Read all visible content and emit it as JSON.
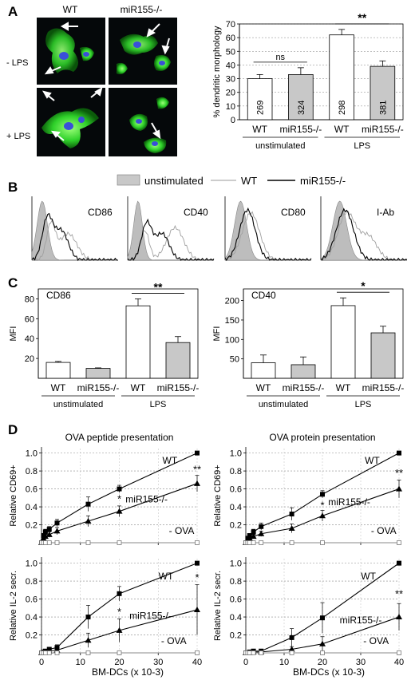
{
  "panels": {
    "A": {
      "letter": "A",
      "micro": {
        "col_labels": [
          "WT",
          "miR155-/-"
        ],
        "row_labels": [
          "- LPS",
          "+ LPS"
        ]
      },
      "chart_data": {
        "type": "bar",
        "ylabel": "% dendritic morphology",
        "ylim": [
          0,
          70
        ],
        "yticks": [
          0,
          10,
          20,
          30,
          40,
          50,
          60,
          70
        ],
        "grid": true,
        "categories": [
          "WT",
          "miR155-/-",
          "WT",
          "miR155-/-"
        ],
        "groups": [
          "unstimulated",
          "LPS"
        ],
        "values": [
          30,
          33,
          62,
          39
        ],
        "errors": [
          3,
          5,
          4,
          4
        ],
        "bar_labels": [
          "269",
          "324",
          "298",
          "381"
        ],
        "colors": [
          "#ffffff",
          "#c8c8c8",
          "#ffffff",
          "#c8c8c8"
        ],
        "significance": [
          {
            "label": "ns",
            "from": 0,
            "to": 1
          },
          {
            "label": "**",
            "from": 2,
            "to": 3
          }
        ]
      }
    },
    "B": {
      "letter": "B",
      "legend": [
        "unstimulated",
        "WT",
        "miR155-/-"
      ],
      "histograms": [
        "CD86",
        "CD40",
        "CD80",
        "I-Ab"
      ]
    },
    "C": {
      "letter": "C",
      "chart_data": [
        {
          "type": "bar",
          "title": "CD86",
          "ylabel": "MFI",
          "ylim": [
            0,
            90
          ],
          "yticks": [
            20,
            40,
            60,
            80
          ],
          "categories": [
            "WT",
            "miR155-/-",
            "WT",
            "miR155-/-"
          ],
          "groups": [
            "unstimulated",
            "LPS"
          ],
          "values": [
            16,
            10,
            73,
            36
          ],
          "errors": [
            1,
            0.5,
            7,
            6
          ],
          "colors": [
            "#ffffff",
            "#c8c8c8",
            "#ffffff",
            "#c8c8c8"
          ],
          "significance": [
            {
              "label": "**",
              "from": 2,
              "to": 3
            }
          ]
        },
        {
          "type": "bar",
          "title": "CD40",
          "ylabel": "MFI",
          "ylim": [
            0,
            230
          ],
          "yticks": [
            50,
            100,
            150,
            200
          ],
          "categories": [
            "WT",
            "miR155-/-",
            "WT",
            "miR155-/-"
          ],
          "groups": [
            "unstimulated",
            "LPS"
          ],
          "values": [
            40,
            35,
            187,
            117
          ],
          "errors": [
            20,
            20,
            20,
            17
          ],
          "colors": [
            "#ffffff",
            "#c8c8c8",
            "#ffffff",
            "#c8c8c8"
          ],
          "significance": [
            {
              "label": "*",
              "from": 2,
              "to": 3
            }
          ]
        }
      ]
    },
    "D": {
      "letter": "D",
      "xlabel": "BM-DCs (x 10-3)",
      "chart_data": [
        {
          "type": "line",
          "title": "OVA peptide presentation",
          "ylabel": "Relative CD69+",
          "xlim": [
            0,
            40
          ],
          "ylim": [
            0,
            1.05
          ],
          "xticks": [
            0,
            10,
            20,
            30,
            40
          ],
          "yticks": [
            0.2,
            0.4,
            0.6,
            0.8,
            1.0
          ],
          "x": [
            0,
            0.5,
            1,
            2,
            4,
            12,
            20,
            40
          ],
          "series": [
            {
              "name": "WT",
              "values": [
                0,
                0.08,
                0.12,
                0.15,
                0.22,
                0.43,
                0.6,
                1.0
              ],
              "errors": [
                0,
                0.02,
                0.03,
                0.03,
                0.04,
                0.08,
                0.04,
                0
              ],
              "marker": "square",
              "label_at": [
                33,
                0.88
              ]
            },
            {
              "name": "miR155-/-",
              "values": [
                0,
                0.05,
                0.07,
                0.09,
                0.13,
                0.24,
                0.35,
                0.66
              ],
              "errors": [
                0,
                0.02,
                0.02,
                0.03,
                0.04,
                0.06,
                0.06,
                0.09
              ],
              "marker": "triangle",
              "label_at": [
                27,
                0.45
              ]
            },
            {
              "name": "- OVA",
              "values": [
                0,
                0,
                0,
                0,
                0,
                0,
                0,
                0
              ],
              "marker": "open",
              "label_at": [
                36,
                0.1
              ]
            }
          ],
          "annotations": [
            {
              "text": "*",
              "x": 20,
              "y": 0.45
            },
            {
              "text": "**",
              "x": 40,
              "y": 0.78
            }
          ]
        },
        {
          "type": "line",
          "title": "OVA protein presentation",
          "ylabel": "Relative CD69+",
          "xlim": [
            0,
            40
          ],
          "ylim": [
            0,
            1.05
          ],
          "xticks": [
            0,
            10,
            20,
            30,
            40
          ],
          "yticks": [
            0.2,
            0.4,
            0.6,
            0.8,
            1.0
          ],
          "x": [
            0,
            0.5,
            1,
            2,
            4,
            12,
            20,
            40
          ],
          "series": [
            {
              "name": "WT",
              "values": [
                0,
                0.05,
                0.08,
                0.12,
                0.18,
                0.32,
                0.54,
                1.0
              ],
              "errors": [
                0,
                0.02,
                0.02,
                0.03,
                0.04,
                0.07,
                0.04,
                0
              ],
              "marker": "square",
              "label_at": [
                33,
                0.88
              ]
            },
            {
              "name": "miR155-/-",
              "values": [
                0,
                0.03,
                0.05,
                0.07,
                0.1,
                0.16,
                0.3,
                0.6
              ],
              "errors": [
                0,
                0.02,
                0.02,
                0.02,
                0.03,
                0.05,
                0.06,
                0.1
              ],
              "marker": "triangle",
              "label_at": [
                27,
                0.42
              ]
            },
            {
              "name": "- OVA",
              "values": [
                0,
                0,
                0,
                0,
                0,
                0,
                0,
                0
              ],
              "marker": "open",
              "label_at": [
                36,
                0.1
              ]
            }
          ],
          "annotations": [
            {
              "text": "*",
              "x": 20,
              "y": 0.38
            },
            {
              "text": "**",
              "x": 40,
              "y": 0.74
            }
          ]
        },
        {
          "type": "line",
          "ylabel": "Relative IL-2 secr.",
          "xlim": [
            0,
            40
          ],
          "ylim": [
            0,
            1.05
          ],
          "xticks": [
            0,
            10,
            20,
            30,
            40
          ],
          "yticks": [
            0.2,
            0.4,
            0.6,
            0.8,
            1.0
          ],
          "x": [
            0,
            0.5,
            1,
            2,
            4,
            12,
            20,
            40
          ],
          "series": [
            {
              "name": "WT",
              "values": [
                0,
                0.01,
                0.02,
                0.04,
                0.06,
                0.4,
                0.66,
                1.0
              ],
              "errors": [
                0,
                0.01,
                0.01,
                0.02,
                0.03,
                0.13,
                0.08,
                0
              ],
              "marker": "square",
              "label_at": [
                32,
                0.82
              ]
            },
            {
              "name": "miR155-/-",
              "values": [
                0,
                0.01,
                0.01,
                0.02,
                0.03,
                0.14,
                0.25,
                0.48
              ],
              "errors": [
                0,
                0.01,
                0.01,
                0.01,
                0.02,
                0.08,
                0.13,
                0.28
              ],
              "marker": "triangle",
              "label_at": [
                28,
                0.38
              ]
            },
            {
              "name": "- OVA",
              "values": [
                0,
                0,
                0,
                0,
                0,
                0,
                0,
                0
              ],
              "marker": "open",
              "label_at": [
                34,
                0.1
              ]
            }
          ],
          "annotations": [
            {
              "text": "*",
              "x": 20,
              "y": 0.42
            },
            {
              "text": "*",
              "x": 40,
              "y": 0.8
            }
          ]
        },
        {
          "type": "line",
          "ylabel": "Relative IL-2 secr.",
          "xlim": [
            0,
            40
          ],
          "ylim": [
            0,
            1.05
          ],
          "xticks": [
            0,
            10,
            20,
            30,
            40
          ],
          "yticks": [
            0.2,
            0.4,
            0.6,
            0.8,
            1.0
          ],
          "x": [
            0,
            0.5,
            1,
            2,
            4,
            12,
            20,
            40
          ],
          "series": [
            {
              "name": "WT",
              "values": [
                0,
                0.0,
                0.01,
                0.02,
                0.02,
                0.17,
                0.39,
                1.0
              ],
              "errors": [
                0,
                0.01,
                0.01,
                0.01,
                0.01,
                0.1,
                0.17,
                0
              ],
              "marker": "square",
              "label_at": [
                32,
                0.82
              ]
            },
            {
              "name": "miR155-/-",
              "values": [
                0,
                0.0,
                0.0,
                0.01,
                0.01,
                0.04,
                0.1,
                0.4
              ],
              "errors": [
                0,
                0.01,
                0.01,
                0.01,
                0.01,
                0.03,
                0.08,
                0.15
              ],
              "marker": "triangle",
              "label_at": [
                30,
                0.33
              ]
            },
            {
              "name": "- OVA",
              "values": [
                0,
                0,
                0,
                0,
                0,
                0,
                0,
                0
              ],
              "marker": "open",
              "label_at": [
                34,
                0.1
              ]
            }
          ],
          "annotations": [
            {
              "text": "**",
              "x": 40,
              "y": 0.62
            }
          ]
        }
      ]
    }
  }
}
